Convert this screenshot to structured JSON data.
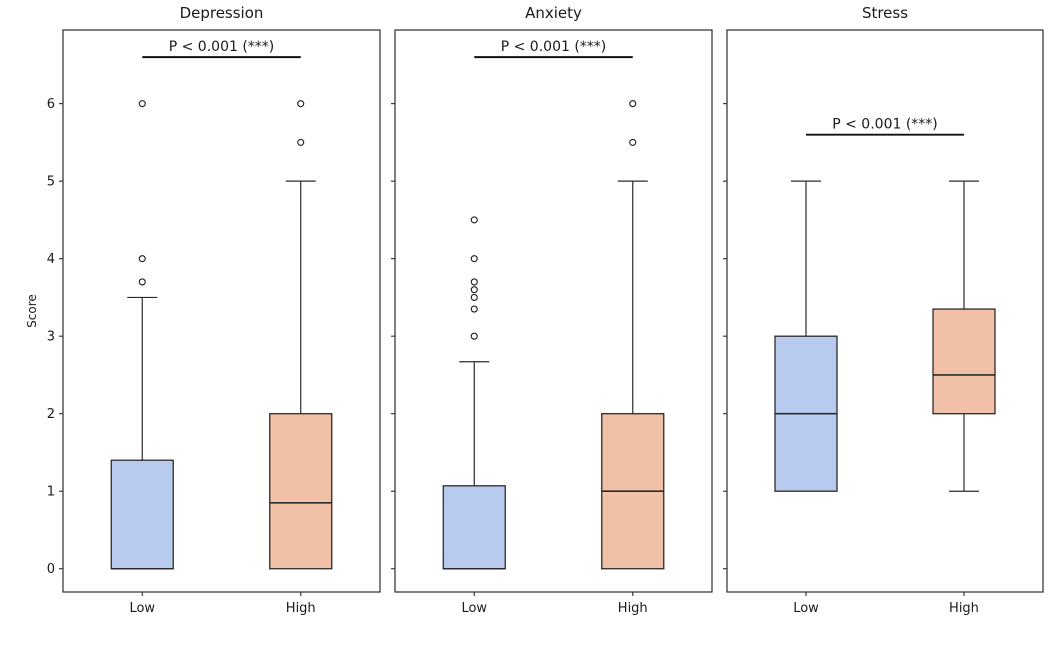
{
  "chart_data": {
    "type": "boxplot",
    "ylabel": "Score",
    "yticks": [
      0,
      1,
      2,
      3,
      4,
      5,
      6
    ],
    "ylim": [
      -0.3,
      6.95
    ],
    "group_labels": [
      "Low",
      "High"
    ],
    "colors": {
      "low_fill": "#b8cbee",
      "high_fill": "#f0c1a6",
      "edge": "#2b2b2b",
      "median": "#2b2b2b",
      "significance_line": "#111111",
      "text": "#1a1a1a",
      "background": "#ffffff"
    },
    "legend": "none",
    "grid": "off",
    "panels": [
      {
        "title": "Depression",
        "significance": {
          "label": "P < 0.001 (***)",
          "bar_y": 6.6
        },
        "boxes": [
          {
            "group": "Low",
            "whisker_low": 0,
            "q1": 0,
            "median": 0,
            "q3": 1.4,
            "whisker_high": 3.5,
            "outliers": [
              3.7,
              4.0,
              6.0
            ]
          },
          {
            "group": "High",
            "whisker_low": 0,
            "q1": 0,
            "median": 0.85,
            "q3": 2.0,
            "whisker_high": 5.0,
            "outliers": [
              5.5,
              6.0
            ]
          }
        ]
      },
      {
        "title": "Anxiety",
        "significance": {
          "label": "P < 0.001 (***)",
          "bar_y": 6.6
        },
        "boxes": [
          {
            "group": "Low",
            "whisker_low": 0,
            "q1": 0,
            "median": 0,
            "q3": 1.07,
            "whisker_high": 2.67,
            "outliers": [
              3.0,
              3.35,
              3.5,
              3.6,
              3.7,
              4.0,
              4.5
            ]
          },
          {
            "group": "High",
            "whisker_low": 0,
            "q1": 0,
            "median": 1.0,
            "q3": 2.0,
            "whisker_high": 5.0,
            "outliers": [
              5.5,
              6.0
            ]
          }
        ]
      },
      {
        "title": "Stress",
        "significance": {
          "label": "P < 0.001 (***)",
          "bar_y": 5.6
        },
        "boxes": [
          {
            "group": "Low",
            "whisker_low": 1.0,
            "q1": 1.0,
            "median": 2.0,
            "q3": 3.0,
            "whisker_high": 5.0,
            "outliers": []
          },
          {
            "group": "High",
            "whisker_low": 1.0,
            "q1": 2.0,
            "median": 2.5,
            "q3": 3.35,
            "whisker_high": 5.0,
            "outliers": []
          }
        ]
      }
    ]
  }
}
